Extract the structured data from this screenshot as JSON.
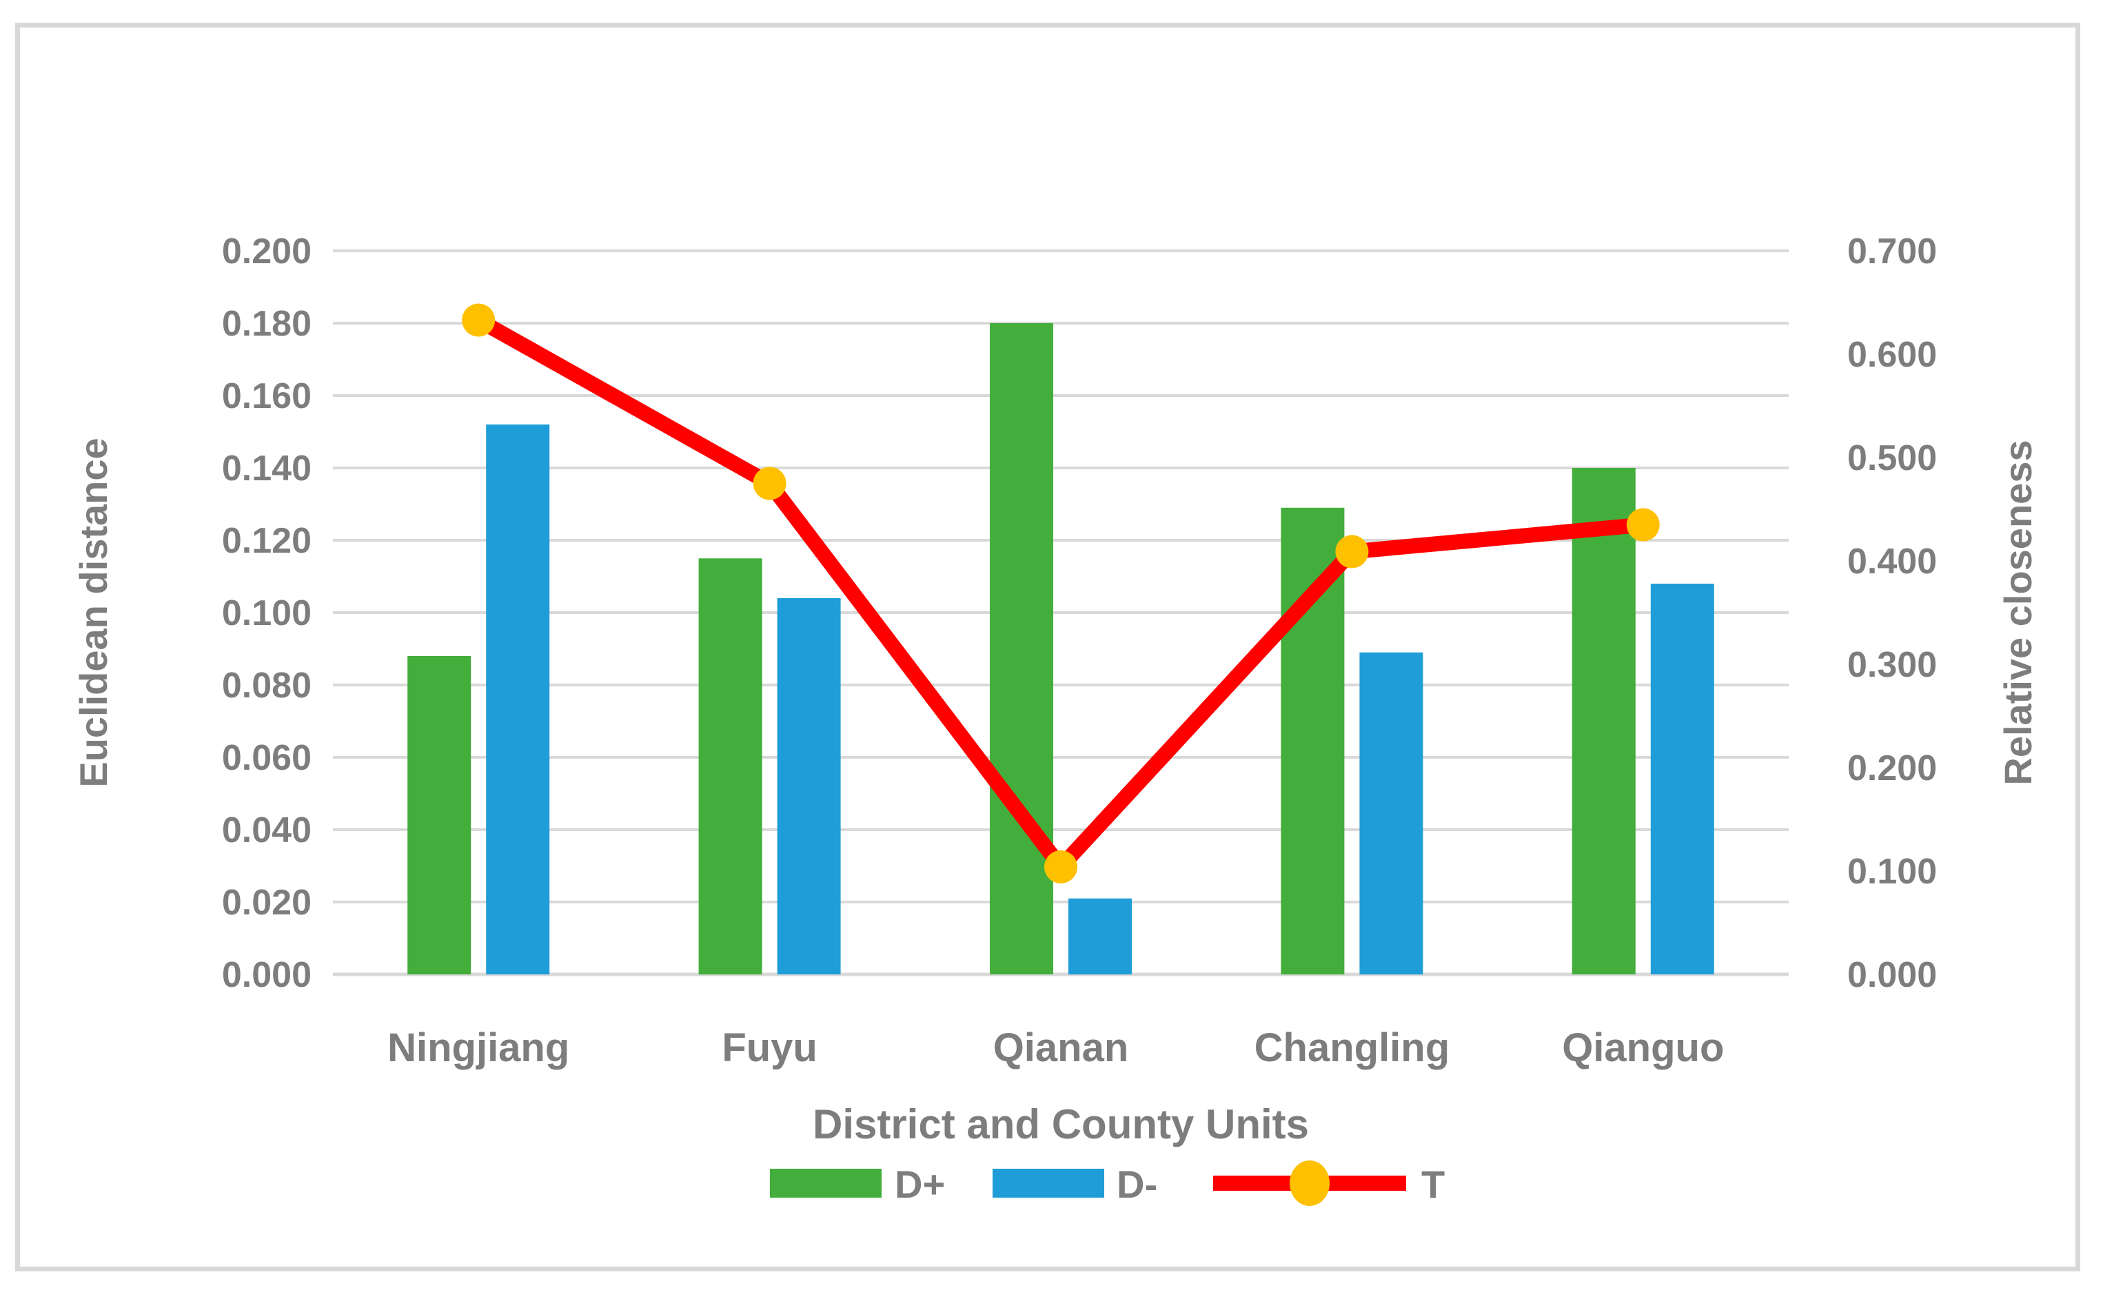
{
  "chart_data": {
    "type": "bar",
    "subtype": "combo-bar-line-dual-axis",
    "categories": [
      "Ningjiang",
      "Fuyu",
      "Qianan",
      "Changling",
      "Qianguo"
    ],
    "series": [
      {
        "name": "D+",
        "type": "bar",
        "axis": "left",
        "color": "#43AE3B",
        "values": [
          0.088,
          0.115,
          0.18,
          0.129,
          0.14
        ]
      },
      {
        "name": "D-",
        "type": "bar",
        "axis": "left",
        "color": "#1E9DD8",
        "values": [
          0.152,
          0.104,
          0.021,
          0.089,
          0.108
        ]
      },
      {
        "name": "T",
        "type": "line",
        "axis": "right",
        "color": "#FF0000",
        "marker_color": "#FFC000",
        "values": [
          0.633,
          0.475,
          0.104,
          0.409,
          0.435
        ]
      }
    ],
    "title": "",
    "xlabel": "District and County Units",
    "ylabel_left": "Euclidean distance",
    "ylabel_right": "Relative closeness",
    "y_left": {
      "min": 0.0,
      "max": 0.2,
      "step": 0.02,
      "tick_format_decimals": 3
    },
    "y_right": {
      "min": 0.0,
      "max": 0.7,
      "step": 0.1,
      "tick_format_decimals": 3
    },
    "grid": true,
    "legend_position": "bottom"
  },
  "colors": {
    "text": "#7D7D7D",
    "gridline": "#D9D9D9",
    "frame": "#D8D8D8",
    "background": "#FFFFFF"
  }
}
